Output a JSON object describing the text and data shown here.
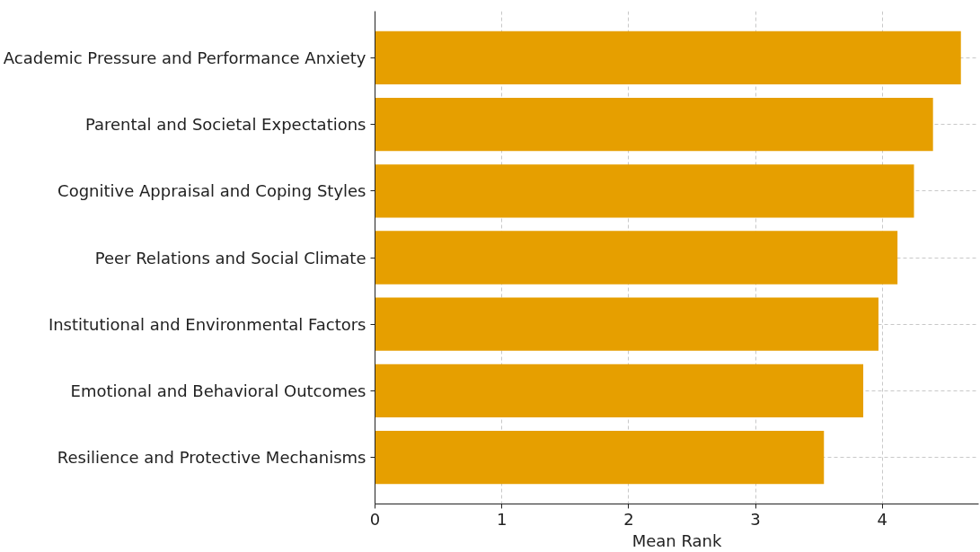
{
  "chart_data": {
    "type": "bar",
    "orientation": "horizontal",
    "xlabel": "Mean Rank",
    "categories": [
      "Academic Pressure and Performance Anxiety",
      "Parental and Societal Expectations",
      "Cognitive Appraisal and Coping Styles",
      "Peer Relations and Social Climate",
      "Institutional and Environmental Factors",
      "Emotional and Behavioral Outcomes",
      "Resilience and Protective Mechanisms"
    ],
    "values": [
      4.62,
      4.4,
      4.25,
      4.12,
      3.97,
      3.85,
      3.54
    ],
    "color": "#e69f00",
    "xlim": [
      0,
      4.76
    ],
    "xticks": [
      0,
      1,
      2,
      3,
      4
    ],
    "grid": true
  }
}
